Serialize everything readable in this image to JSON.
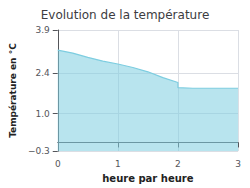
{
  "chart_data": {
    "type": "area",
    "title": "Evolution de la température",
    "xlabel": "heure par heure",
    "ylabel": "Température en °C",
    "x": [
      0,
      0.25,
      0.5,
      0.75,
      1.0,
      1.25,
      1.5,
      1.75,
      2.0,
      2.0,
      2.25,
      2.5,
      2.75,
      3.0
    ],
    "values": [
      3.2,
      3.1,
      2.95,
      2.82,
      2.72,
      2.6,
      2.45,
      2.25,
      2.08,
      1.9,
      1.88,
      1.88,
      1.88,
      1.88
    ],
    "color": "#7dcde0",
    "xlim": [
      0,
      3
    ],
    "ylim": [
      -0.3,
      3.9
    ],
    "xticks": [
      0,
      1,
      2,
      3
    ],
    "yticks": [
      {
        "value": -0.3,
        "label": "−0.3"
      },
      {
        "value": 1.0,
        "label": "1.0"
      },
      2.4,
      3.9
    ],
    "grid": true
  }
}
